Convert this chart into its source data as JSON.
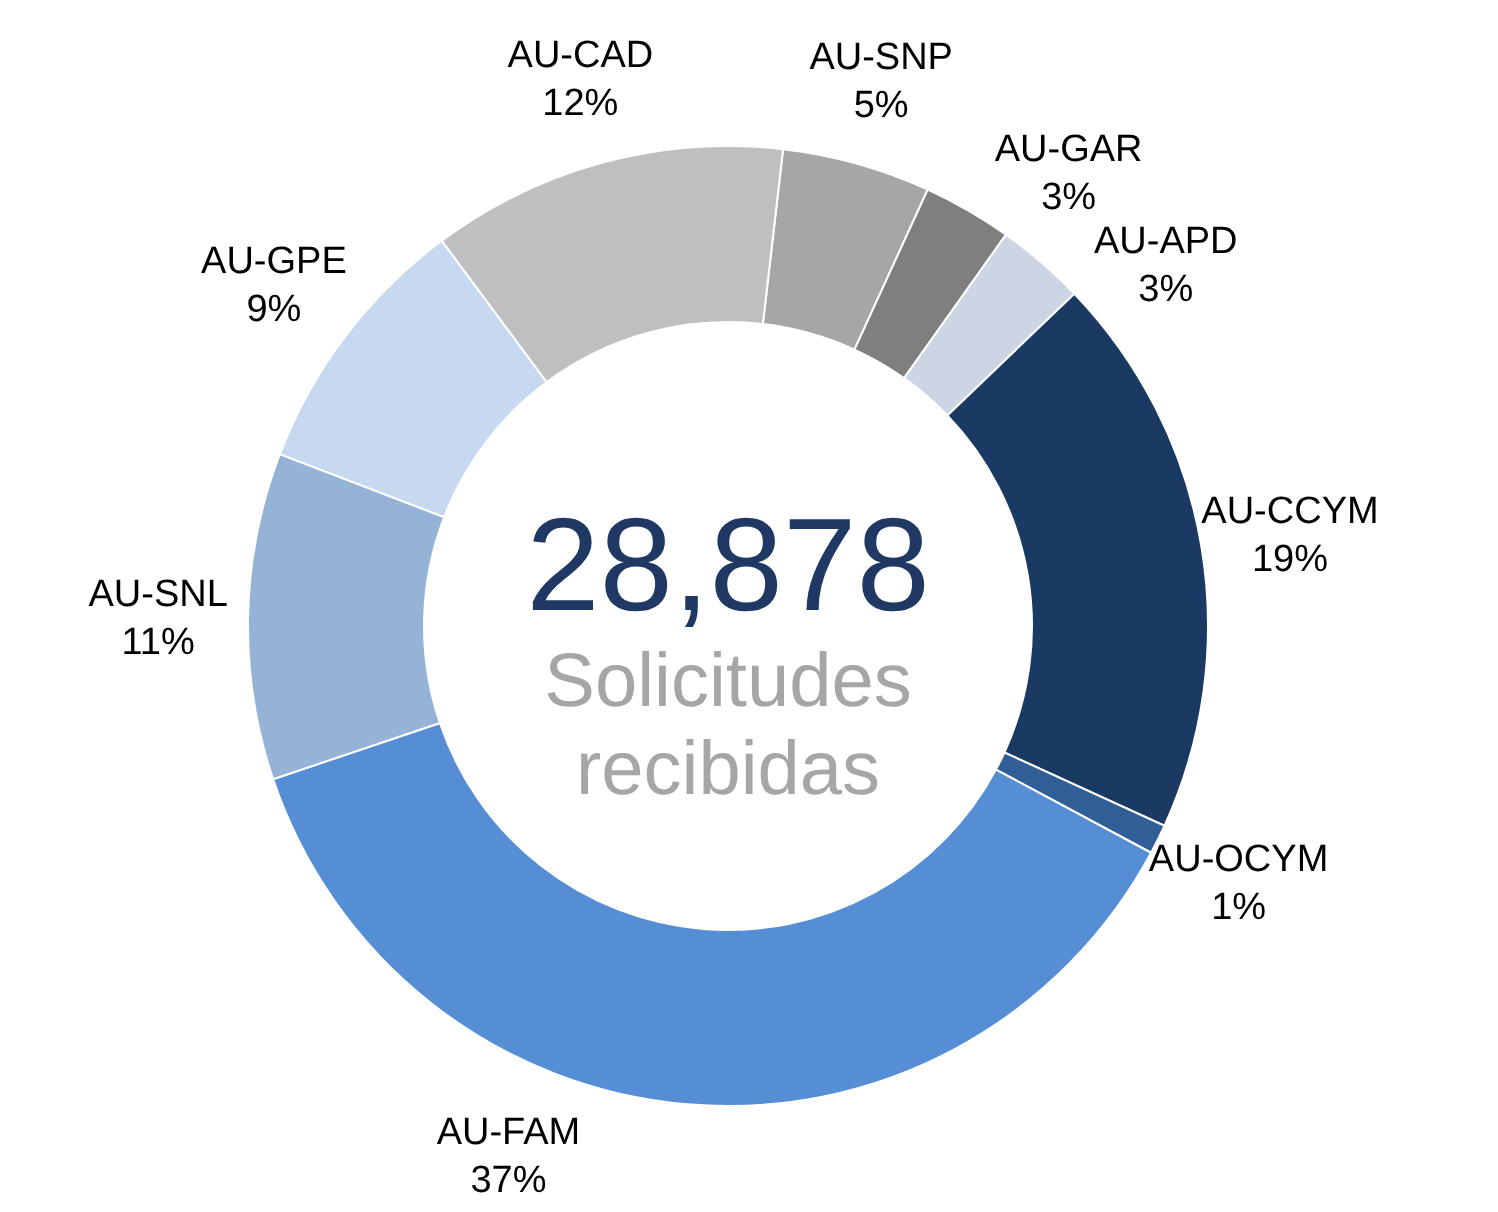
{
  "chart_data": {
    "type": "donut",
    "title": "28,878",
    "subtitle": "Solicitudes recibidas",
    "categories": [
      "AU-SNP",
      "AU-GAR",
      "AU-APD",
      "AU-CCYM",
      "AU-OCYM",
      "AU-FAM",
      "AU-SNL",
      "AU-GPE",
      "AU-CAD"
    ],
    "values": [
      5,
      3,
      3,
      19,
      1,
      37,
      11,
      9,
      12
    ],
    "colors": [
      "#a6a6a6",
      "#7f7f7f",
      "#ccd5e4",
      "#1a3a63",
      "#2f5f96",
      "#558ed5",
      "#95b3d7",
      "#c6d9f1",
      "#bfbfbf"
    ],
    "value_labels": [
      "5%",
      "3%",
      "3%",
      "19%",
      "1%",
      "37%",
      "11%",
      "9%",
      "12%"
    ]
  }
}
